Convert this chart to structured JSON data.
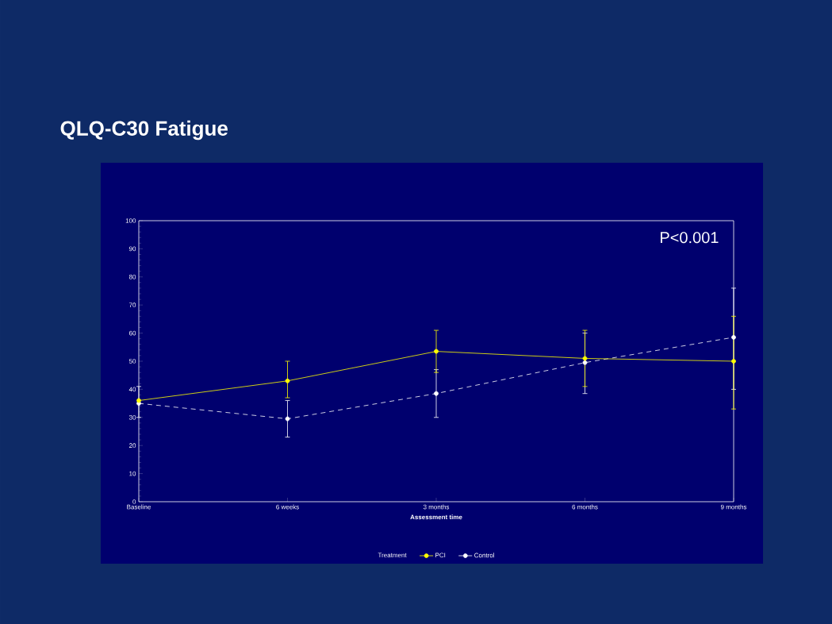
{
  "chart_data": {
    "type": "line",
    "title": "QLQ-C30 Fatigue",
    "xlabel": "Assessment time",
    "legend_title": "Treatment",
    "categories": [
      "Baseline",
      "6 weeks",
      "3 months",
      "6 months",
      "9 months"
    ],
    "series": [
      {
        "name": "PCI",
        "color": "#ffff00",
        "line_style": "solid",
        "values": [
          36,
          43,
          53.5,
          51,
          50
        ],
        "errors": [
          null,
          [
            37,
            50
          ],
          [
            46,
            61
          ],
          [
            41,
            61
          ],
          [
            33,
            66
          ]
        ]
      },
      {
        "name": "Control",
        "color": "#ffffff",
        "line_style": "dashed",
        "values": [
          35,
          29.5,
          38.5,
          49.5,
          58.5
        ],
        "errors": [
          [
            30,
            41
          ],
          [
            23,
            36
          ],
          [
            30,
            47
          ],
          [
            38.5,
            60
          ],
          [
            40,
            76
          ]
        ]
      }
    ],
    "ylim": [
      0,
      100
    ],
    "yticks": [
      0,
      10,
      20,
      30,
      40,
      50,
      60,
      70,
      80,
      90,
      100
    ],
    "marker": "circle",
    "legend": "bottom",
    "grid": false,
    "annotations": [
      "P<0.001"
    ]
  }
}
